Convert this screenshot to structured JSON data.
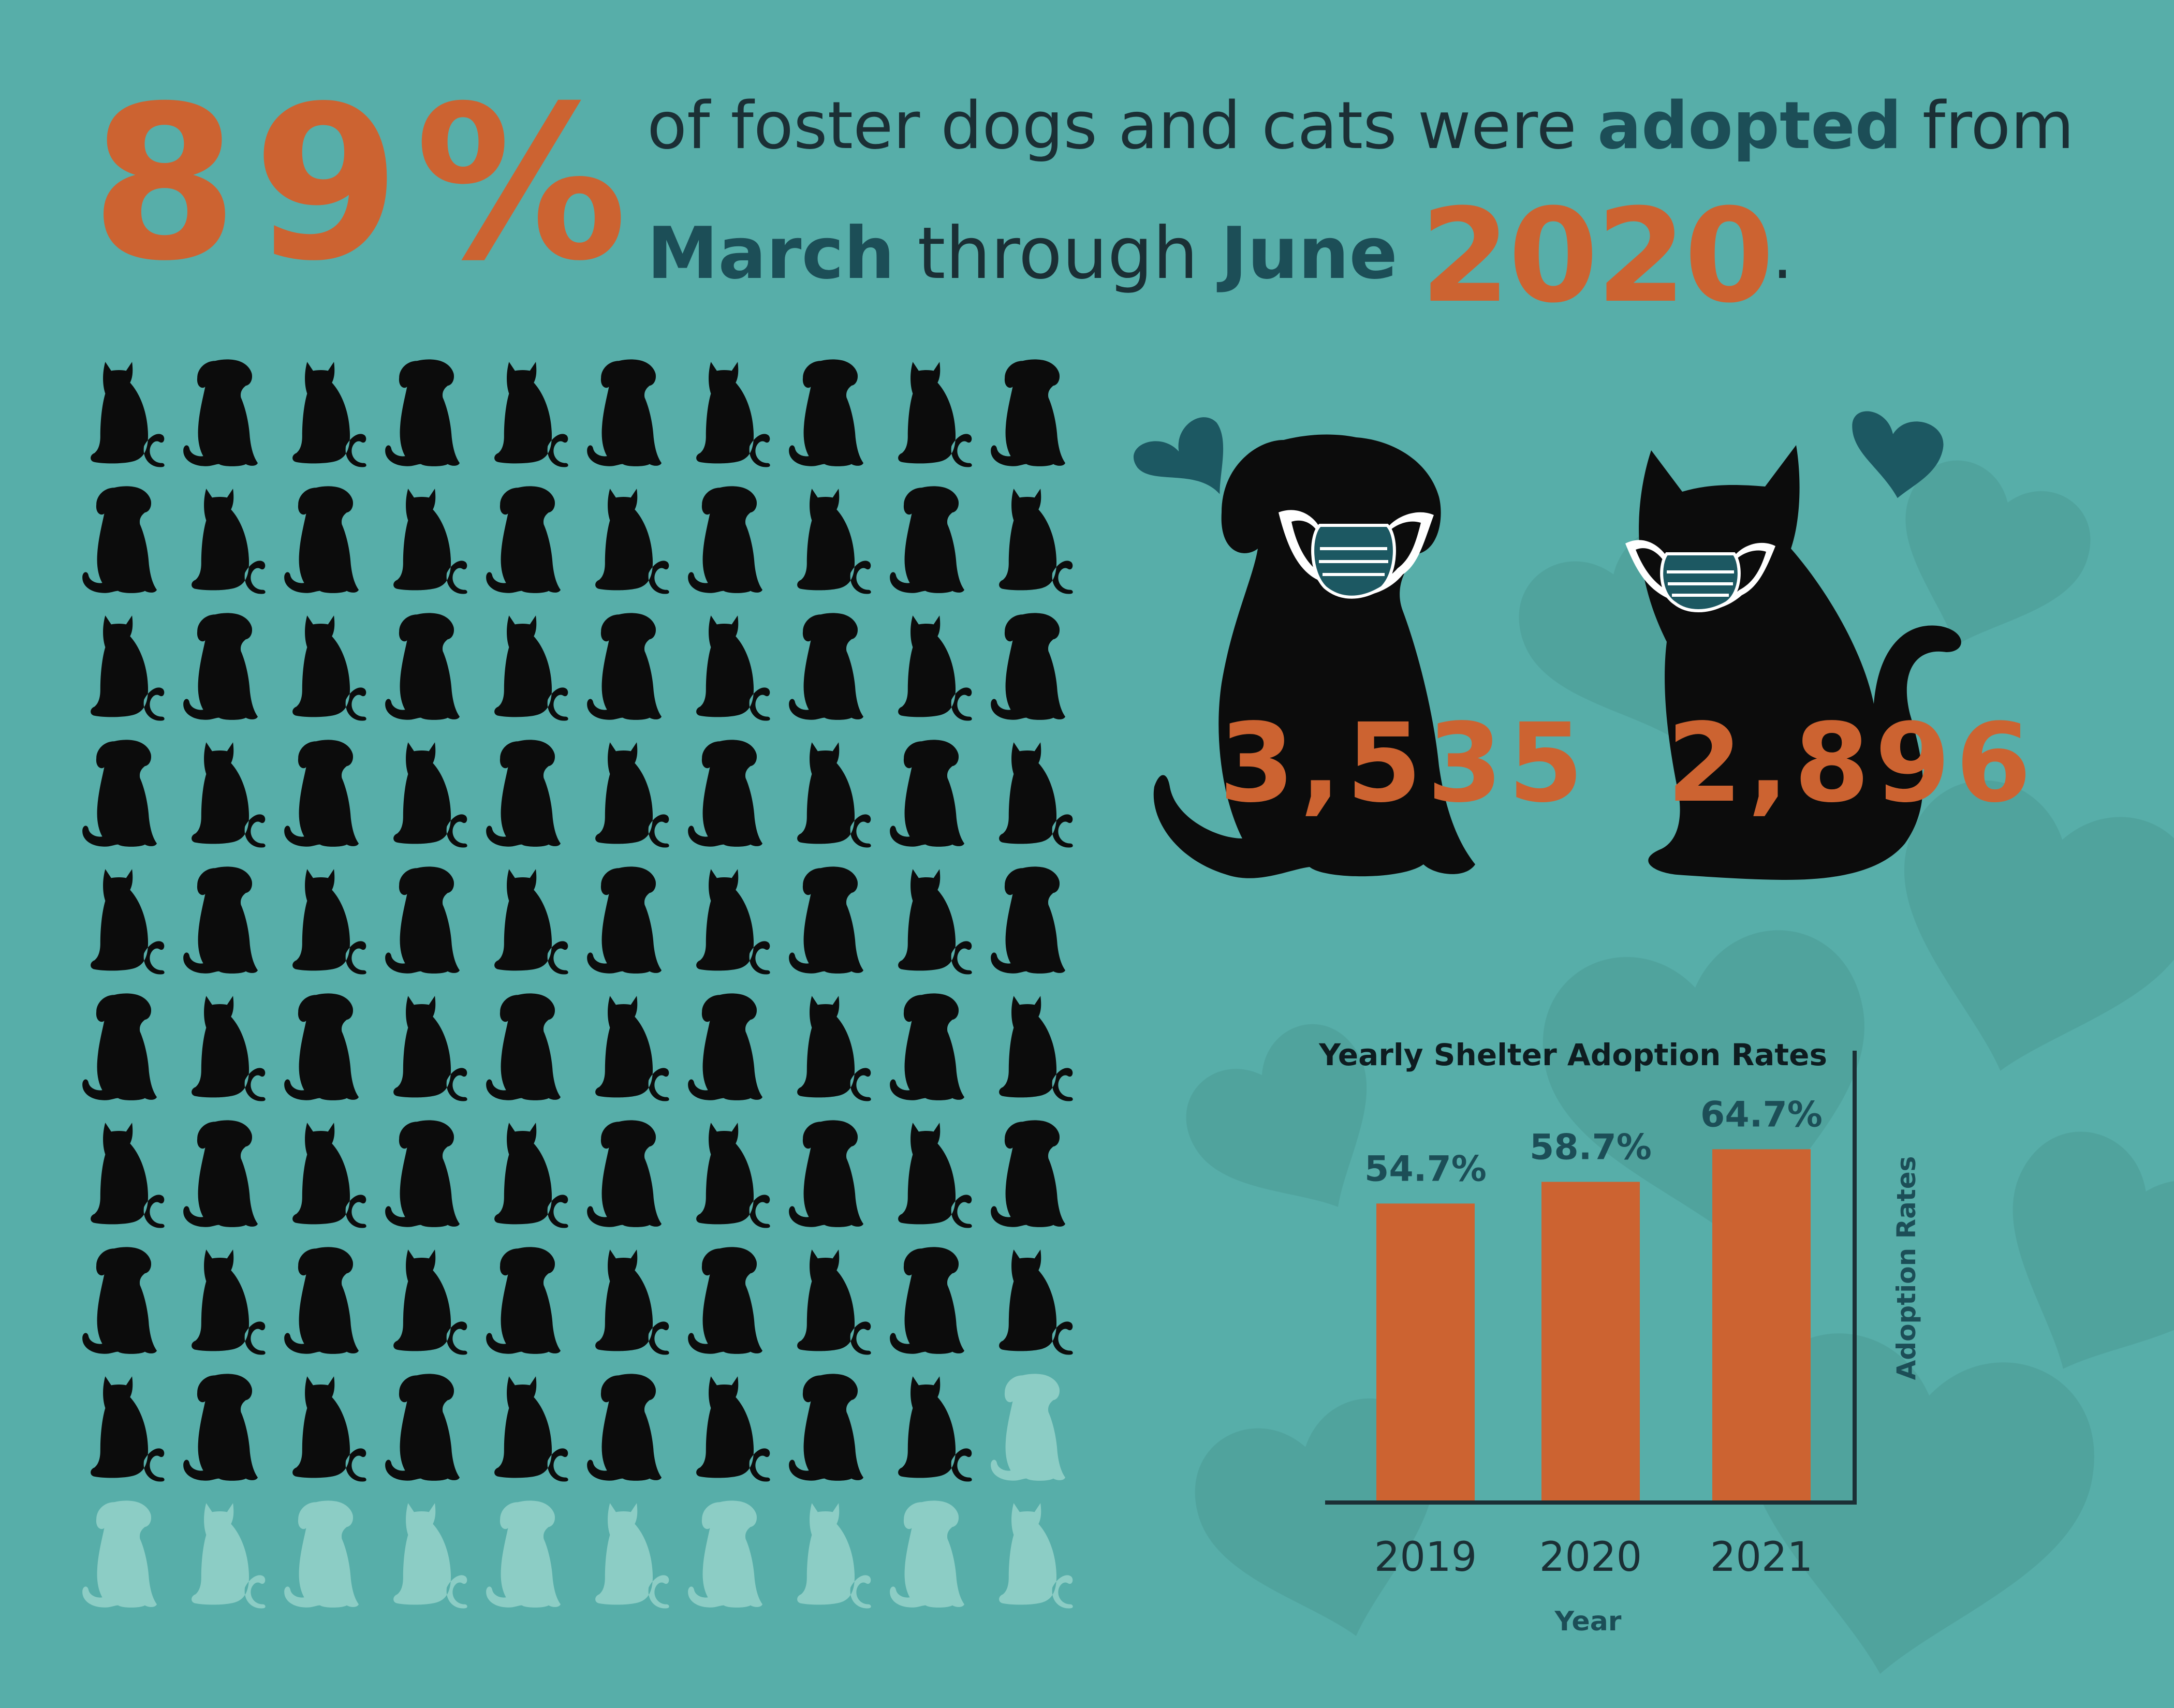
{
  "headline": {
    "percent": "89%",
    "line1_pre": "of foster dogs and cats were ",
    "line1_bold": "adopted",
    "line1_post": " from",
    "line2_month1": "March",
    "line2_mid": " through ",
    "line2_month2": "June",
    "line2_year": "2020",
    "line2_end": "."
  },
  "pet_grid": {
    "rows": 10,
    "cols": 10,
    "adopted_count": 89,
    "adopted_color": "#0c0c0c",
    "remaining_color": "#8ccdc5"
  },
  "featured": {
    "dog_count": "3,535",
    "cat_count": "2,896",
    "heart_color": "#1c5862",
    "mask_color": "#1c5862"
  },
  "chart_data": {
    "type": "bar",
    "title": "Yearly Shelter Adoption Rates",
    "xlabel": "Year",
    "ylabel": "Adoption Rates",
    "categories": [
      "2019",
      "2020",
      "2021"
    ],
    "values": [
      54.7,
      58.7,
      64.7
    ],
    "data_labels": [
      "54.7%",
      "58.7%",
      "64.7%"
    ],
    "ylim": [
      0,
      80
    ],
    "bar_color": "#cc6331",
    "label_color": "#1c4e57",
    "axis_position": "right",
    "grid": false
  },
  "colors": {
    "background": "#57aea9",
    "accent_orange": "#cc6331",
    "dark_teal": "#1c4e57",
    "text_dark": "#1b2f35"
  }
}
